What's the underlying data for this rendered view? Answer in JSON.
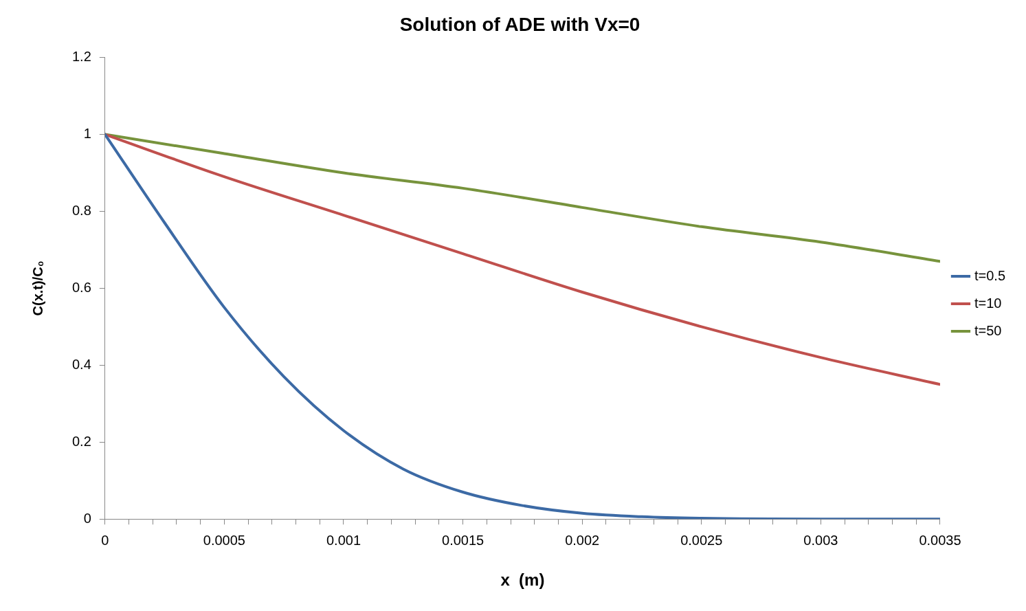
{
  "chart_data": {
    "type": "line",
    "title": "Solution of ADE with Vx=0",
    "xlabel": "x  (m)",
    "ylabel": "C(x.t)/C₀",
    "xlim": [
      0,
      0.0035
    ],
    "xticks": [
      0,
      {
        "value": 0.0001,
        "label": null
      },
      {
        "value": 0.0002,
        "label": null
      },
      {
        "value": 0.0003,
        "label": null
      },
      {
        "value": 0.0004,
        "label": null
      },
      0.0005,
      {
        "value": 0.0006,
        "label": null
      },
      {
        "value": 0.0007,
        "label": null
      },
      {
        "value": 0.0008,
        "label": null
      },
      {
        "value": 0.0009,
        "label": null
      },
      0.001,
      {
        "value": 0.0011,
        "label": null
      },
      {
        "value": 0.0012,
        "label": null
      },
      {
        "value": 0.0013,
        "label": null
      },
      {
        "value": 0.0014,
        "label": null
      },
      0.0015,
      {
        "value": 0.0016,
        "label": null
      },
      {
        "value": 0.0017,
        "label": null
      },
      {
        "value": 0.0018,
        "label": null
      },
      {
        "value": 0.0019,
        "label": null
      },
      0.002,
      {
        "value": 0.0021,
        "label": null
      },
      {
        "value": 0.0022,
        "label": null
      },
      {
        "value": 0.0023,
        "label": null
      },
      {
        "value": 0.0024,
        "label": null
      },
      0.0025,
      {
        "value": 0.0026,
        "label": null
      },
      {
        "value": 0.0027,
        "label": null
      },
      {
        "value": 0.0028,
        "label": null
      },
      {
        "value": 0.0029,
        "label": null
      },
      0.003,
      {
        "value": 0.0031,
        "label": null
      },
      {
        "value": 0.0032,
        "label": null
      },
      {
        "value": 0.0033,
        "label": null
      },
      {
        "value": 0.0034,
        "label": null
      },
      0.0035
    ],
    "ylim": [
      0,
      1.2
    ],
    "yticks": [
      0,
      0.2,
      0.4,
      0.6,
      0.8,
      1,
      1.2
    ],
    "grid": false,
    "legend": "right",
    "marker": "none",
    "line_style": "solid",
    "series": [
      {
        "name": "t=0.5",
        "color": "#3c6aa5",
        "x": [
          0,
          0.00025,
          0.0005,
          0.00075,
          0.001,
          0.00125,
          0.0015,
          0.00175,
          0.002,
          0.00225,
          0.0025,
          0.003,
          0.0035
        ],
        "values": [
          1,
          0.77,
          0.55,
          0.37,
          0.23,
          0.13,
          0.07,
          0.035,
          0.015,
          0.006,
          0.002,
          0,
          0
        ]
      },
      {
        "name": "t=10",
        "color": "#c0504d",
        "x": [
          0,
          0.0005,
          0.001,
          0.0015,
          0.002,
          0.0025,
          0.003,
          0.0035
        ],
        "values": [
          1,
          0.89,
          0.79,
          0.69,
          0.59,
          0.5,
          0.42,
          0.35
        ]
      },
      {
        "name": "t=50",
        "color": "#77933c",
        "x": [
          0,
          0.0005,
          0.001,
          0.0015,
          0.002,
          0.0025,
          0.003,
          0.0035
        ],
        "values": [
          1,
          0.95,
          0.9,
          0.86,
          0.81,
          0.76,
          0.72,
          0.67
        ]
      }
    ]
  }
}
